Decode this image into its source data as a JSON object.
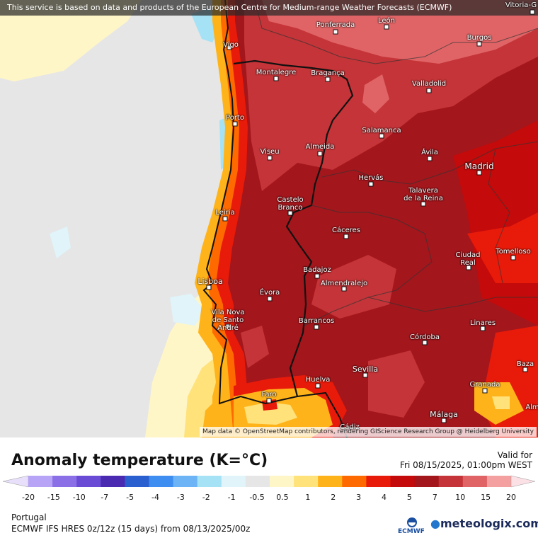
{
  "banner": "This service is based on data and products of the European Centre for Medium-range Weather Forecasts (ECMWF)",
  "attribution": "Map data © OpenStreetMap contributors, rendering GIScience Research Group @ Heidelberg University",
  "title": "Anomaly temperature (K=°C)",
  "valid_label": "Valid for",
  "valid_time": "Fri 08/15/2025, 01:00pm WEST",
  "region": "Portugal",
  "model": "ECMWF IFS HRES 0z/12z (15 days) from 08/13/2025/00z",
  "ecmwf_logo_text": "ECMWF",
  "brand": {
    "name": "meteologix",
    "suffix": ".com"
  },
  "colorbar": {
    "ticks": [
      "-20",
      "-15",
      "-10",
      "-7",
      "-5",
      "-4",
      "-3",
      "-2",
      "-1",
      "-0.5",
      "0.5",
      "1",
      "2",
      "3",
      "4",
      "5",
      "7",
      "10",
      "15",
      "20"
    ],
    "colors": [
      "#b7a4f6",
      "#8a6fe6",
      "#6a4bd6",
      "#4a2ab0",
      "#2a5fd0",
      "#3d8ef0",
      "#6cb4f6",
      "#a6e2f6",
      "#e0f4fa",
      "#e6e6e6",
      "#fff6c8",
      "#ffe27a",
      "#ffb31a",
      "#ff6a00",
      "#e81a0a",
      "#c40a0a",
      "#a3161c",
      "#c43438",
      "#e06466",
      "#f4a0a0"
    ]
  },
  "cities": [
    {
      "id": "vigo",
      "name": "Vigo"
    },
    {
      "id": "ponferrada",
      "name": "Ponferrada"
    },
    {
      "id": "leon",
      "name": "León"
    },
    {
      "id": "burgos",
      "name": "Burgos"
    },
    {
      "id": "vitoria",
      "name": "Vitoria-G"
    },
    {
      "id": "montalegre",
      "name": "Montalegre"
    },
    {
      "id": "braganca",
      "name": "Bragança"
    },
    {
      "id": "valladolid",
      "name": "Valladolid"
    },
    {
      "id": "porto",
      "name": "Porto"
    },
    {
      "id": "salamanca",
      "name": "Salamanca"
    },
    {
      "id": "viseu",
      "name": "Viseu"
    },
    {
      "id": "almeida",
      "name": "Almeida"
    },
    {
      "id": "avila",
      "name": "Ávila"
    },
    {
      "id": "madrid",
      "name": "Madrid"
    },
    {
      "id": "hervas",
      "name": "Hervás"
    },
    {
      "id": "talavera",
      "name": "Talavera\nde la Reina"
    },
    {
      "id": "castelo",
      "name": "Castelo\nBranco"
    },
    {
      "id": "leiria",
      "name": "Leiria"
    },
    {
      "id": "caceres",
      "name": "Cáceres"
    },
    {
      "id": "ciudadreal",
      "name": "Ciudad\nReal"
    },
    {
      "id": "tomelloso",
      "name": "Tomelloso"
    },
    {
      "id": "badajoz",
      "name": "Badajoz"
    },
    {
      "id": "almendralejo",
      "name": "Almendralejo"
    },
    {
      "id": "lisboa",
      "name": "Lisboa"
    },
    {
      "id": "evora",
      "name": "Évora"
    },
    {
      "id": "vilanova",
      "name": "Vila Nova\nde Santo\nAndré"
    },
    {
      "id": "barrancos",
      "name": "Barrancos"
    },
    {
      "id": "linares",
      "name": "Linares"
    },
    {
      "id": "cordoba",
      "name": "Córdoba"
    },
    {
      "id": "sevilla",
      "name": "Sevilla"
    },
    {
      "id": "baza",
      "name": "Baza"
    },
    {
      "id": "huelva",
      "name": "Huelva"
    },
    {
      "id": "granada",
      "name": "Granada"
    },
    {
      "id": "faro",
      "name": "Faro"
    },
    {
      "id": "malaga",
      "name": "Málaga"
    },
    {
      "id": "almeria",
      "name": "Alm"
    },
    {
      "id": "cadiz",
      "name": "Cádiz"
    }
  ]
}
